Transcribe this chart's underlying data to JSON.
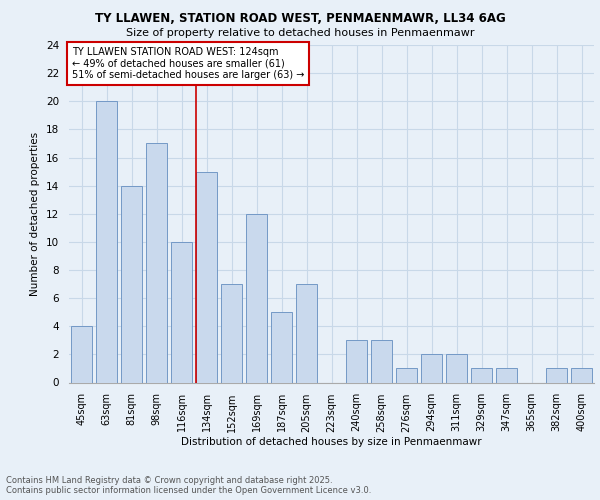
{
  "title_line1": "TY LLAWEN, STATION ROAD WEST, PENMAENMAWR, LL34 6AG",
  "title_line2": "Size of property relative to detached houses in Penmaenmawr",
  "xlabel": "Distribution of detached houses by size in Penmaenmawr",
  "ylabel": "Number of detached properties",
  "categories": [
    "45sqm",
    "63sqm",
    "81sqm",
    "98sqm",
    "116sqm",
    "134sqm",
    "152sqm",
    "169sqm",
    "187sqm",
    "205sqm",
    "223sqm",
    "240sqm",
    "258sqm",
    "276sqm",
    "294sqm",
    "311sqm",
    "329sqm",
    "347sqm",
    "365sqm",
    "382sqm",
    "400sqm"
  ],
  "values": [
    4,
    20,
    14,
    17,
    10,
    15,
    7,
    12,
    5,
    7,
    0,
    3,
    3,
    1,
    2,
    2,
    1,
    1,
    0,
    1,
    1
  ],
  "bar_color": "#c9d9ed",
  "bar_edge_color": "#7399c6",
  "vline_x": 4.58,
  "vline_color": "#cc0000",
  "annotation_text": "TY LLAWEN STATION ROAD WEST: 124sqm\n← 49% of detached houses are smaller (61)\n51% of semi-detached houses are larger (63) →",
  "annotation_box_color": "#ffffff",
  "annotation_box_edge": "#cc0000",
  "ylim": [
    0,
    24
  ],
  "yticks": [
    0,
    2,
    4,
    6,
    8,
    10,
    12,
    14,
    16,
    18,
    20,
    22,
    24
  ],
  "grid_color": "#c8d8e8",
  "footer_text": "Contains HM Land Registry data © Crown copyright and database right 2025.\nContains public sector information licensed under the Open Government Licence v3.0.",
  "bg_color": "#e8f0f8",
  "plot_bg_color": "#e8f0f8"
}
